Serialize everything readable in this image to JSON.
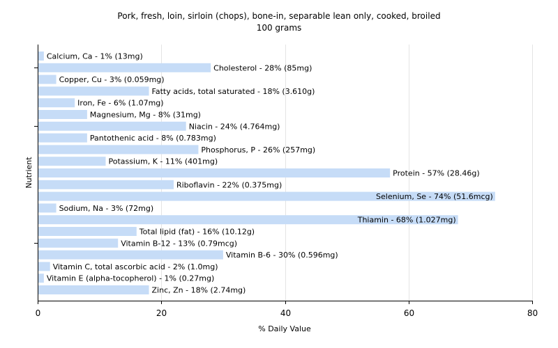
{
  "chart_data": {
    "type": "bar",
    "orientation": "horizontal",
    "title": "Pork, fresh, loin, sirloin (chops), bone-in, separable lean only, cooked, broiled",
    "subtitle": "100 grams",
    "xlabel": "% Daily Value",
    "ylabel": "Nutrient",
    "xlim": [
      0,
      80
    ],
    "xticks": [
      0,
      20,
      40,
      60,
      80
    ],
    "grid": true,
    "bar_color": "#c6dcf7",
    "categories": [
      "Calcium, Ca - 1% (13mg)",
      "Cholesterol - 28% (85mg)",
      "Copper, Cu - 3% (0.059mg)",
      "Fatty acids, total saturated - 18% (3.610g)",
      "Iron, Fe - 6% (1.07mg)",
      "Magnesium, Mg - 8% (31mg)",
      "Niacin - 24% (4.764mg)",
      "Pantothenic acid - 8% (0.783mg)",
      "Phosphorus, P - 26% (257mg)",
      "Potassium, K - 11% (401mg)",
      "Protein - 57% (28.46g)",
      "Riboflavin - 22% (0.375mg)",
      "Selenium, Se - 74% (51.6mcg)",
      "Sodium, Na - 3% (72mg)",
      "Thiamin - 68% (1.027mg)",
      "Total lipid (fat) - 16% (10.12g)",
      "Vitamin B-12 - 13% (0.79mcg)",
      "Vitamin B-6 - 30% (0.596mg)",
      "Vitamin C, total ascorbic acid - 2% (1.0mg)",
      "Vitamin E (alpha-tocopherol) - 1% (0.27mg)",
      "Zinc, Zn - 18% (2.74mg)"
    ],
    "values": [
      1,
      28,
      3,
      18,
      6,
      8,
      24,
      8,
      26,
      11,
      57,
      22,
      74,
      3,
      68,
      16,
      13,
      30,
      2,
      1,
      18
    ]
  }
}
